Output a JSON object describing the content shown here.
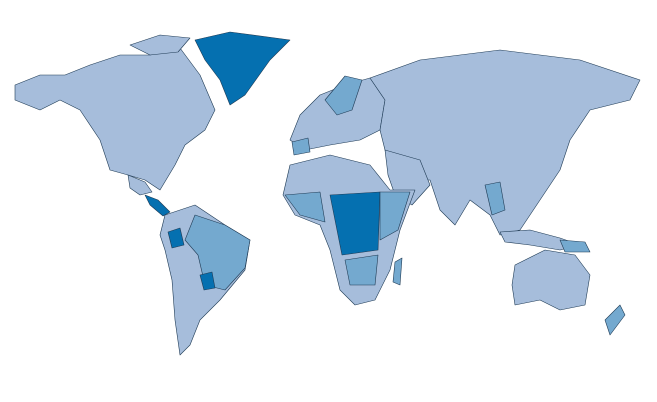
{
  "map": {
    "colors": [
      "#a6bddb",
      "#74a9cf",
      "#0570b0"
    ]
  }
}
